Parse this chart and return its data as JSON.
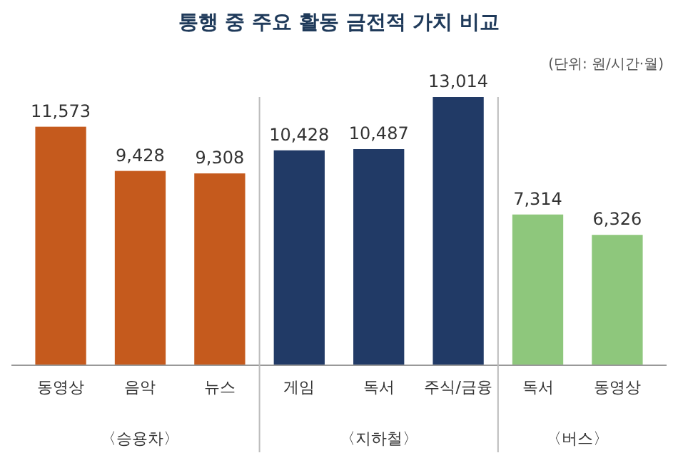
{
  "chart_data": {
    "type": "bar",
    "title": "통행 중 주요 활동 금전적 가치 비교",
    "categories": [
      "동영상",
      "음악",
      "뉴스",
      "게임",
      "독서",
      "주식/금융",
      "독서",
      "동영상"
    ],
    "values": [
      11573,
      9428,
      9308,
      10428,
      10487,
      13014,
      7314,
      6326
    ],
    "colors": [
      "#c55a1d",
      "#c55a1d",
      "#c55a1d",
      "#213a66",
      "#213a66",
      "#213a66",
      "#8ec77c",
      "#8ec77c"
    ],
    "value_labels": [
      "11,573",
      "9,428",
      "9,308",
      "10,428",
      "10,487",
      "13,014",
      "7,314",
      "6,326"
    ],
    "annotations": [
      "(단위: 원/시간·월)",
      "〈승용차〉",
      "〈지하철〉",
      "〈버스〉"
    ]
  }
}
